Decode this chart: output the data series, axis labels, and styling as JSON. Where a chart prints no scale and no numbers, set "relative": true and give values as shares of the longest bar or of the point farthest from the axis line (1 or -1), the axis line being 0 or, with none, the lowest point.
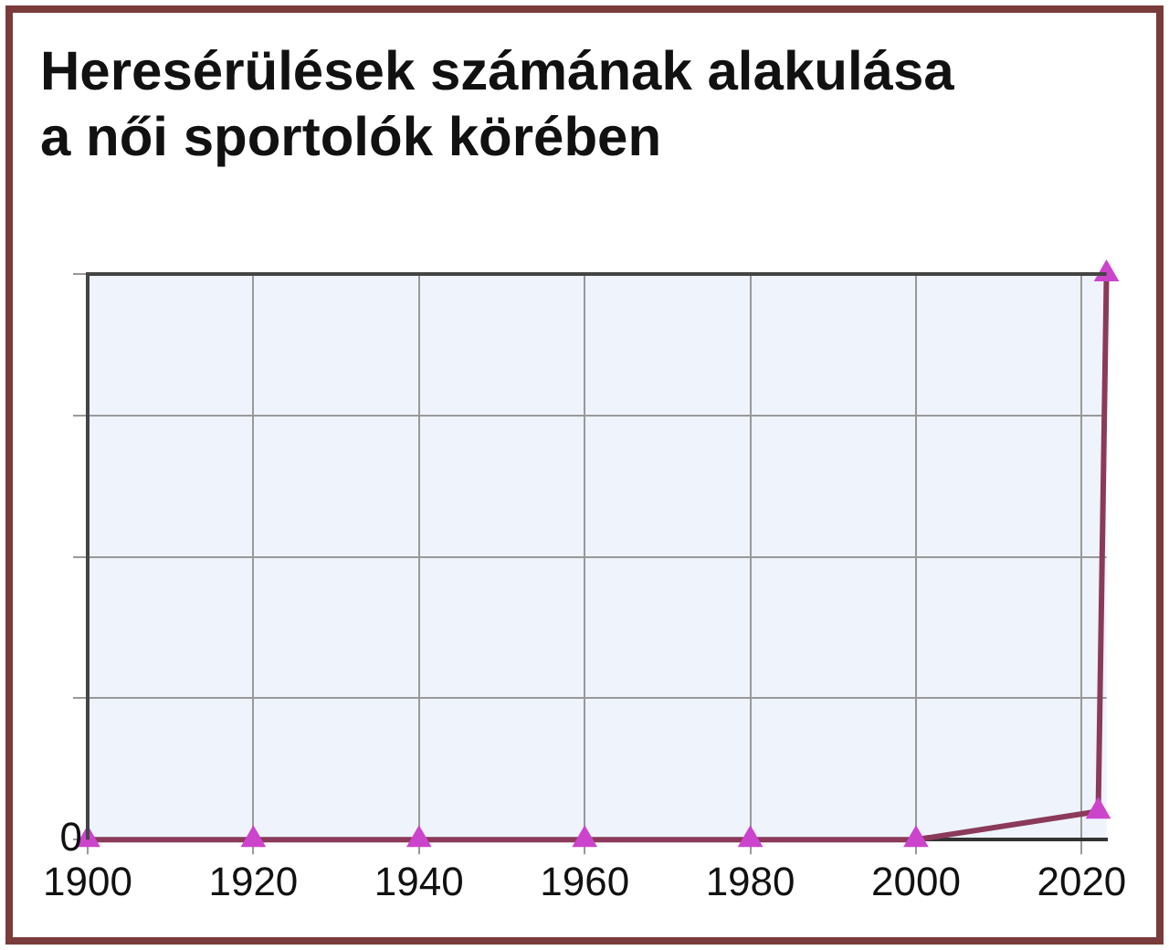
{
  "chart_data": {
    "type": "line",
    "title": "Heresérülések számának alakulása a női sportolók körében",
    "x": [
      1900,
      1920,
      1940,
      1960,
      1980,
      2000,
      2022,
      2023
    ],
    "series": [
      {
        "color": "#8b3a5a",
        "values": [
          0,
          0,
          0,
          0,
          0,
          0,
          0.05,
          1
        ]
      }
    ],
    "relative": true,
    "xlim": [
      1900,
      2023
    ],
    "xticks": [
      1900,
      1920,
      1940,
      1960,
      1980,
      2000,
      2020
    ],
    "annotations": [
      "0"
    ],
    "grid": true,
    "legend": false,
    "marker": "triangle",
    "line_style": "solid"
  }
}
